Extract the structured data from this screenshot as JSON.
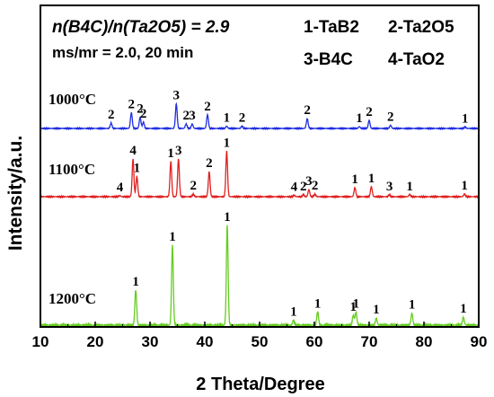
{
  "chart_data": {
    "type": "line",
    "xlabel": "2 Theta/Degree",
    "ylabel": "Intensity/a.u.",
    "xlim": [
      10,
      90
    ],
    "x_ticks": [
      10,
      20,
      30,
      40,
      50,
      60,
      70,
      80,
      90
    ],
    "x_tick_labels": [
      "10",
      "20",
      "30",
      "40",
      "50",
      "60",
      "70",
      "80",
      "90"
    ],
    "y_ticks_shown": false,
    "grid": false,
    "annotations": {
      "ratio": "n(B4C)/n(Ta2O5) = 2.9",
      "condition": "ms/mr = 2.0,  20 min"
    },
    "legend": {
      "placement": "top-right",
      "entries": [
        {
          "id": "1",
          "label": "1-TaB2"
        },
        {
          "id": "2",
          "label": "2-Ta2O5"
        },
        {
          "id": "3",
          "label": "3-B4C"
        },
        {
          "id": "4",
          "label": "4-TaO2"
        }
      ]
    },
    "series": [
      {
        "name": "1000°C",
        "color": "#1f2ee0",
        "peaks": [
          {
            "x": 22.9,
            "height": 0.12,
            "label": "2"
          },
          {
            "x": 26.6,
            "height": 0.35,
            "label": "2"
          },
          {
            "x": 28.2,
            "height": 0.25,
            "label": "2"
          },
          {
            "x": 28.8,
            "height": 0.14,
            "label": "2"
          },
          {
            "x": 34.8,
            "height": 0.55,
            "label": "3"
          },
          {
            "x": 36.6,
            "height": 0.1,
            "label": "2"
          },
          {
            "x": 37.7,
            "height": 0.1,
            "label": "3"
          },
          {
            "x": 40.5,
            "height": 0.3,
            "label": "2"
          },
          {
            "x": 44.0,
            "height": 0.05,
            "label": "1"
          },
          {
            "x": 46.8,
            "height": 0.05,
            "label": "2"
          },
          {
            "x": 58.7,
            "height": 0.22,
            "label": "2"
          },
          {
            "x": 68.2,
            "height": 0.04,
            "label": "1"
          },
          {
            "x": 70.0,
            "height": 0.18,
            "label": "2"
          },
          {
            "x": 73.9,
            "height": 0.07,
            "label": "2"
          },
          {
            "x": 87.5,
            "height": 0.03,
            "label": "1"
          }
        ]
      },
      {
        "name": "1100°C",
        "color": "#e02020",
        "peaks": [
          {
            "x": 24.5,
            "height": 0.02,
            "label": "4"
          },
          {
            "x": 26.9,
            "height": 0.75,
            "label": "4"
          },
          {
            "x": 27.6,
            "height": 0.4,
            "label": "1"
          },
          {
            "x": 33.8,
            "height": 0.7,
            "label": "1"
          },
          {
            "x": 35.2,
            "height": 0.75,
            "label": "3"
          },
          {
            "x": 37.9,
            "height": 0.05,
            "label": "2"
          },
          {
            "x": 40.8,
            "height": 0.5,
            "label": "2"
          },
          {
            "x": 44.0,
            "height": 0.9,
            "label": "1"
          },
          {
            "x": 56.3,
            "height": 0.03,
            "label": "4"
          },
          {
            "x": 58.0,
            "height": 0.04,
            "label": "2"
          },
          {
            "x": 59.0,
            "height": 0.14,
            "label": "3"
          },
          {
            "x": 60.1,
            "height": 0.05,
            "label": "2"
          },
          {
            "x": 67.4,
            "height": 0.18,
            "label": "1"
          },
          {
            "x": 70.4,
            "height": 0.2,
            "label": "1"
          },
          {
            "x": 73.7,
            "height": 0.04,
            "label": "3"
          },
          {
            "x": 77.4,
            "height": 0.04,
            "label": "1"
          },
          {
            "x": 87.4,
            "height": 0.05,
            "label": "1"
          }
        ]
      },
      {
        "name": "1200°C",
        "color": "#66cc22",
        "peaks": [
          {
            "x": 27.4,
            "height": 0.35,
            "label": "1"
          },
          {
            "x": 34.1,
            "height": 0.8,
            "label": "1"
          },
          {
            "x": 44.1,
            "height": 1.0,
            "label": "1"
          },
          {
            "x": 56.2,
            "height": 0.05,
            "label": "1"
          },
          {
            "x": 60.6,
            "height": 0.13,
            "label": "1"
          },
          {
            "x": 67.1,
            "height": 0.1,
            "label": "1"
          },
          {
            "x": 67.6,
            "height": 0.13,
            "label": "1"
          },
          {
            "x": 71.3,
            "height": 0.07,
            "label": "1"
          },
          {
            "x": 77.8,
            "height": 0.12,
            "label": "1"
          },
          {
            "x": 87.2,
            "height": 0.08,
            "label": "1"
          }
        ]
      }
    ]
  }
}
